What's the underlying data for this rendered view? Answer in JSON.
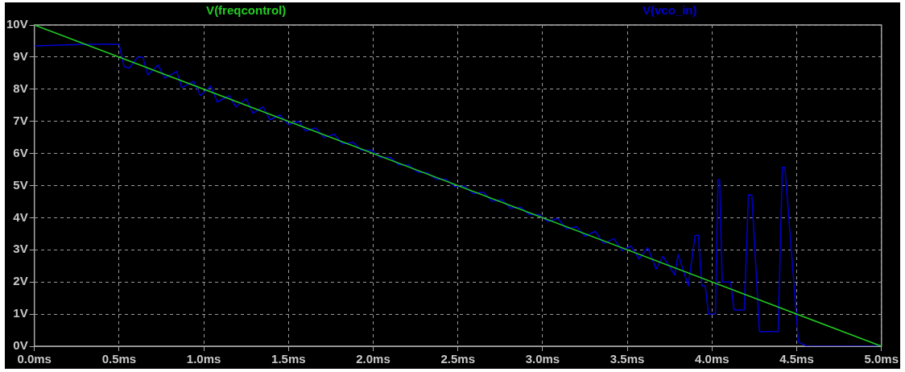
{
  "chart_data": {
    "type": "line",
    "legend": "top",
    "grid": true,
    "marker": "none",
    "xlim": [
      0,
      5
    ],
    "ylim": [
      0,
      10
    ],
    "xticks": [
      {
        "value": 0,
        "label": "0.0ms"
      },
      {
        "value": 0.5,
        "label": "0.5ms"
      },
      {
        "value": 1,
        "label": "1.0ms"
      },
      {
        "value": 1.5,
        "label": "1.5ms"
      },
      {
        "value": 2,
        "label": "2.0ms"
      },
      {
        "value": 2.5,
        "label": "2.5ms"
      },
      {
        "value": 3,
        "label": "3.0ms"
      },
      {
        "value": 3.5,
        "label": "3.5ms"
      },
      {
        "value": 4,
        "label": "4.0ms"
      },
      {
        "value": 4.5,
        "label": "4.5ms"
      },
      {
        "value": 5,
        "label": "5.0ms"
      }
    ],
    "yticks": [
      {
        "value": 0,
        "label": "0V"
      },
      {
        "value": 1,
        "label": "1V"
      },
      {
        "value": 2,
        "label": "2V"
      },
      {
        "value": 3,
        "label": "3V"
      },
      {
        "value": 4,
        "label": "4V"
      },
      {
        "value": 5,
        "label": "5V"
      },
      {
        "value": 6,
        "label": "6V"
      },
      {
        "value": 7,
        "label": "7V"
      },
      {
        "value": 8,
        "label": "8V"
      },
      {
        "value": 9,
        "label": "9V"
      },
      {
        "value": 10,
        "label": "10V"
      }
    ],
    "series": [
      {
        "name": "V(freqcontrol)",
        "color": "#22cc22",
        "x": [
          0,
          5
        ],
        "values": [
          10,
          0
        ]
      },
      {
        "name": "V(vco_in)",
        "color": "#0000d0",
        "x": [
          0,
          0.3,
          0.5,
          0.53,
          0.56,
          0.61,
          0.64,
          0.67,
          0.73,
          0.77,
          0.84,
          0.87,
          0.94,
          0.98,
          1.04,
          1.08,
          1.15,
          1.19,
          1.25,
          1.29,
          1.35,
          1.39,
          1.45,
          1.5,
          1.56,
          1.6,
          1.66,
          1.71,
          1.77,
          1.82,
          1.88,
          1.93,
          1.99,
          2.04,
          2.1,
          2.15,
          2.21,
          2.26,
          2.32,
          2.37,
          2.43,
          2.48,
          2.54,
          2.59,
          2.65,
          2.7,
          2.76,
          2.81,
          2.87,
          2.92,
          2.98,
          3.03,
          3.09,
          3.14,
          3.2,
          3.25,
          3.31,
          3.36,
          3.42,
          3.47,
          3.52,
          3.57,
          3.62,
          3.67,
          3.71,
          3.78,
          3.8,
          3.86,
          3.9,
          3.92,
          3.94,
          3.96,
          3.98,
          4.02,
          4.035,
          4.045,
          4.06,
          4.11,
          4.13,
          4.19,
          4.215,
          4.235,
          4.28,
          4.39,
          4.415,
          4.43,
          4.51,
          4.56,
          5
        ],
        "values": [
          9.35,
          9.4,
          9.4,
          8.7,
          8.66,
          9.0,
          9.0,
          8.45,
          8.75,
          8.35,
          8.55,
          8.05,
          8.25,
          7.8,
          8.1,
          7.6,
          7.8,
          7.45,
          7.7,
          7.25,
          7.45,
          7.05,
          7.2,
          6.9,
          7.0,
          6.7,
          6.8,
          6.5,
          6.6,
          6.3,
          6.35,
          6.1,
          6.1,
          5.88,
          5.88,
          5.65,
          5.64,
          5.42,
          5.4,
          5.2,
          5.2,
          4.97,
          4.98,
          4.75,
          4.8,
          4.52,
          4.56,
          4.3,
          4.33,
          4.1,
          4.1,
          3.88,
          3.98,
          3.65,
          3.72,
          3.42,
          3.58,
          3.2,
          3.35,
          2.98,
          3.12,
          2.72,
          3.07,
          2.4,
          2.8,
          2.22,
          2.86,
          1.88,
          3.45,
          3.45,
          1.88,
          1.88,
          1.0,
          1.0,
          5.18,
          5.18,
          2.0,
          2.0,
          1.13,
          1.13,
          4.72,
          4.7,
          0.46,
          0.46,
          5.57,
          5.57,
          0.13,
          0,
          0
        ]
      }
    ]
  }
}
